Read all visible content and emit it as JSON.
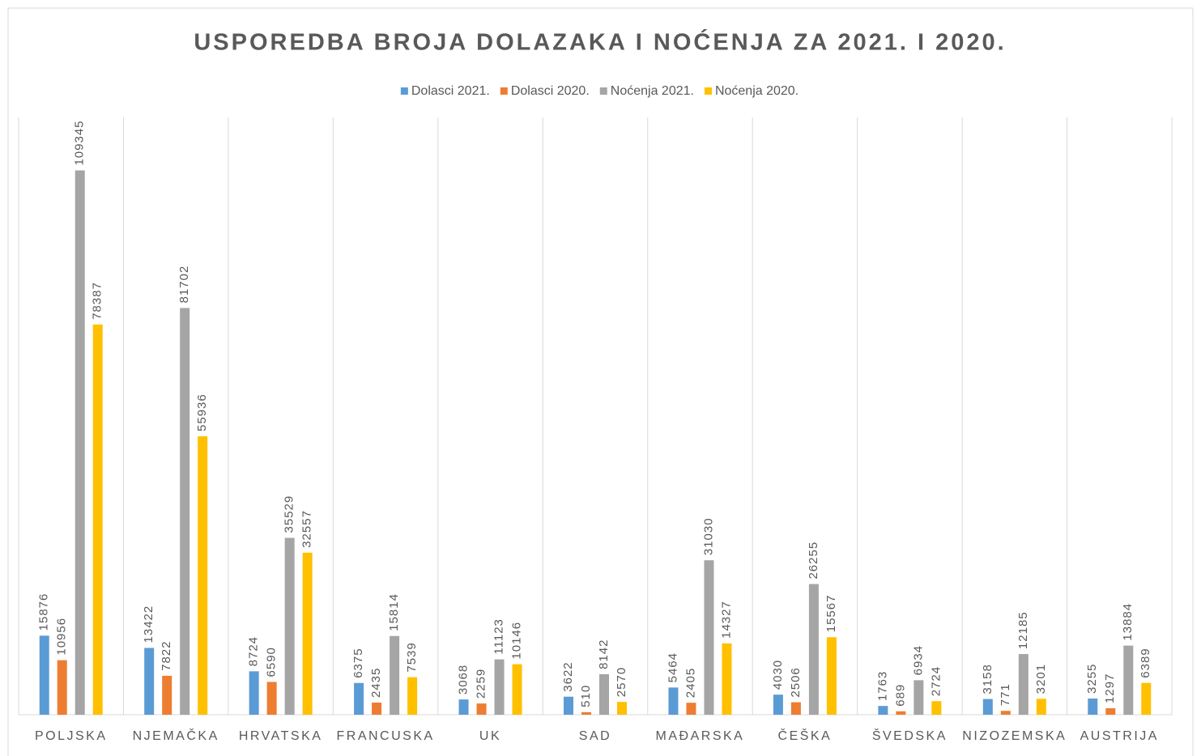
{
  "chart_data": {
    "type": "bar",
    "title": "USPOREDBA BROJA DOLAZAKA I NOĆENJA ZA 2021. I 2020.",
    "categories": [
      "POLJSKA",
      "NJEMAČKA",
      "HRVATSKA",
      "FRANCUSKA",
      "UK",
      "SAD",
      "MAĐARSKA",
      "ČEŠKA",
      "ŠVEDSKA",
      "NIZOZEMSKA",
      "AUSTRIJA"
    ],
    "series": [
      {
        "name": "Dolasci 2021.",
        "color": "#5b9bd5",
        "values": [
          15876,
          13422,
          8724,
          6375,
          3068,
          3622,
          5464,
          4030,
          1763,
          3158,
          3255
        ]
      },
      {
        "name": "Dolasci 2020.",
        "color": "#ed7d31",
        "values": [
          10956,
          7822,
          6590,
          2435,
          2259,
          510,
          2405,
          2506,
          689,
          771,
          1297
        ]
      },
      {
        "name": "Noćenja 2021.",
        "color": "#a5a5a5",
        "values": [
          109345,
          81702,
          35529,
          15814,
          11123,
          8142,
          31030,
          26255,
          6934,
          12185,
          13884
        ]
      },
      {
        "name": "Noćenja 2020.",
        "color": "#ffc000",
        "values": [
          78387,
          55936,
          32557,
          7539,
          10146,
          2570,
          14327,
          15567,
          2724,
          3201,
          6389
        ]
      }
    ],
    "ylim": [
      0,
      120000
    ],
    "legend": "top"
  }
}
